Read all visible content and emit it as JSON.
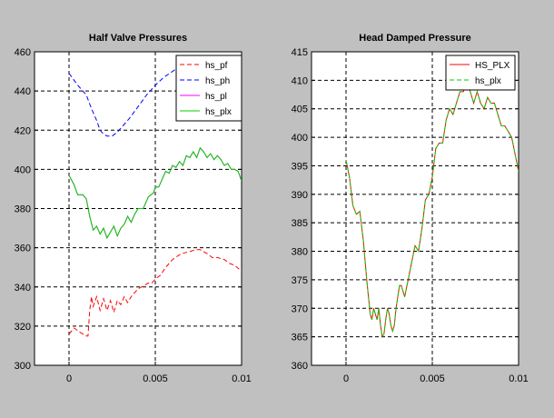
{
  "chart_data": [
    {
      "type": "line",
      "title": "Half Valve Pressures",
      "xlabel": "",
      "ylabel": "",
      "xlim": [
        -0.002,
        0.01
      ],
      "ylim": [
        300,
        460
      ],
      "xticks": [
        0,
        0.005,
        0.01
      ],
      "xtick_labels": [
        "0",
        "0.005",
        "0.01"
      ],
      "yticks": [
        300,
        320,
        340,
        360,
        380,
        400,
        420,
        440,
        460
      ],
      "ytick_labels": [
        "300",
        "320",
        "340",
        "360",
        "380",
        "400",
        "420",
        "440",
        "460"
      ],
      "grid": true,
      "legend_position": "top-right",
      "series": [
        {
          "name": "hs_pf",
          "color": "#ff0000",
          "dash": "dashed",
          "x": [
            0,
            0.0003,
            0.0006,
            0.001,
            0.0011,
            0.0012,
            0.0013,
            0.0014,
            0.0016,
            0.0018,
            0.002,
            0.0022,
            0.0024,
            0.0026,
            0.0028,
            0.003,
            0.0032,
            0.0034,
            0.0036,
            0.0038,
            0.004,
            0.0042,
            0.0044,
            0.0046,
            0.0048,
            0.005,
            0.0053,
            0.0056,
            0.006,
            0.0065,
            0.007,
            0.0073,
            0.0076,
            0.008,
            0.0083,
            0.0086,
            0.009,
            0.0093,
            0.0096,
            0.01
          ],
          "y": [
            316,
            319,
            317,
            315,
            315,
            328,
            335,
            330,
            335,
            328,
            334,
            328,
            333,
            327,
            333,
            331,
            335,
            332,
            335,
            337,
            339,
            340,
            341,
            342,
            342,
            344,
            346,
            350,
            354,
            357,
            358,
            359,
            359,
            357,
            355,
            355,
            354,
            352,
            351,
            348
          ]
        },
        {
          "name": "hs_ph",
          "color": "#0000ff",
          "dash": "dashed",
          "x": [
            0,
            0.0005,
            0.001,
            0.0013,
            0.0016,
            0.0018,
            0.002,
            0.0022,
            0.0025,
            0.0028,
            0.003,
            0.0035,
            0.004,
            0.0045,
            0.005,
            0.0055,
            0.006,
            0.0063
          ],
          "y": [
            449,
            443,
            438,
            431,
            425,
            420,
            418,
            417,
            417,
            419,
            421,
            426,
            432,
            438,
            443,
            447,
            450,
            452
          ]
        },
        {
          "name": "hs_pl",
          "color": "#ff00ff",
          "dash": "solid",
          "x": [
            0,
            0.0003,
            0.0005,
            0.0008,
            0.001,
            0.0012,
            0.0014,
            0.0016,
            0.0018,
            0.002,
            0.0022,
            0.0024,
            0.0026,
            0.0028,
            0.003,
            0.0032,
            0.0034,
            0.0036,
            0.0038,
            0.004,
            0.0043,
            0.0046,
            0.0049,
            0.005,
            0.0052,
            0.0054,
            0.0056,
            0.0058,
            0.006,
            0.0062,
            0.0064,
            0.0066,
            0.0068,
            0.007,
            0.0072,
            0.0074,
            0.0076,
            0.0078,
            0.008,
            0.0082,
            0.0084,
            0.0086,
            0.0088,
            0.009,
            0.0092,
            0.0094,
            0.0096,
            0.0098,
            0.01
          ],
          "y": [
            397,
            392,
            387,
            387,
            385,
            376,
            369,
            371,
            367,
            370,
            365,
            368,
            371,
            366,
            370,
            372,
            376,
            373,
            377,
            380,
            380,
            386,
            388,
            391,
            391,
            395,
            399,
            398,
            402,
            401,
            404,
            402,
            407,
            406,
            409,
            406,
            411,
            409,
            406,
            408,
            405,
            407,
            405,
            402,
            403,
            400,
            400,
            399,
            394
          ]
        },
        {
          "name": "hs_plx",
          "color": "#00d000",
          "dash": "solid",
          "x": [
            0,
            0.0003,
            0.0005,
            0.0008,
            0.001,
            0.0012,
            0.0014,
            0.0016,
            0.0018,
            0.002,
            0.0022,
            0.0024,
            0.0026,
            0.0028,
            0.003,
            0.0032,
            0.0034,
            0.0036,
            0.0038,
            0.004,
            0.0043,
            0.0046,
            0.0049,
            0.005,
            0.0052,
            0.0054,
            0.0056,
            0.0058,
            0.006,
            0.0062,
            0.0064,
            0.0066,
            0.0068,
            0.007,
            0.0072,
            0.0074,
            0.0076,
            0.0078,
            0.008,
            0.0082,
            0.0084,
            0.0086,
            0.0088,
            0.009,
            0.0092,
            0.0094,
            0.0096,
            0.0098,
            0.01
          ],
          "y": [
            397,
            392,
            387,
            387,
            385,
            376,
            369,
            371,
            367,
            370,
            365,
            368,
            371,
            366,
            370,
            372,
            376,
            373,
            377,
            380,
            380,
            386,
            388,
            391,
            391,
            395,
            399,
            398,
            402,
            401,
            404,
            402,
            407,
            406,
            409,
            406,
            411,
            409,
            406,
            408,
            405,
            407,
            405,
            402,
            403,
            400,
            400,
            399,
            394
          ]
        }
      ]
    },
    {
      "type": "line",
      "title": "Head Damped Pressure",
      "xlabel": "",
      "ylabel": "",
      "xlim": [
        -0.002,
        0.01
      ],
      "ylim": [
        360,
        415
      ],
      "xticks": [
        0,
        0.005,
        0.01
      ],
      "xtick_labels": [
        "0",
        "0.005",
        "0.01"
      ],
      "yticks": [
        360,
        365,
        370,
        375,
        380,
        385,
        390,
        395,
        400,
        405,
        410,
        415
      ],
      "ytick_labels": [
        "360",
        "365",
        "370",
        "375",
        "380",
        "385",
        "390",
        "395",
        "400",
        "405",
        "410",
        "415"
      ],
      "grid": true,
      "legend_position": "top-right",
      "series": [
        {
          "name": "HS_PLX",
          "color": "#ff0000",
          "dash": "solid",
          "x": [
            0,
            0.0002,
            0.0004,
            0.0006,
            0.0008,
            0.001,
            0.0012,
            0.0014,
            0.0015,
            0.0016,
            0.0017,
            0.0018,
            0.0019,
            0.002,
            0.0021,
            0.0022,
            0.0023,
            0.0024,
            0.0025,
            0.0026,
            0.0027,
            0.0028,
            0.0029,
            0.003,
            0.0031,
            0.0032,
            0.0034,
            0.0036,
            0.0038,
            0.004,
            0.0042,
            0.0044,
            0.0046,
            0.0048,
            0.005,
            0.0052,
            0.0054,
            0.0056,
            0.0058,
            0.006,
            0.0062,
            0.0064,
            0.0066,
            0.0068,
            0.007,
            0.0072,
            0.0074,
            0.0076,
            0.0078,
            0.008,
            0.0082,
            0.0084,
            0.0086,
            0.0088,
            0.009,
            0.0092,
            0.0094,
            0.0096,
            0.0098,
            0.01
          ],
          "y": [
            396,
            393,
            388,
            386.5,
            387,
            382,
            375,
            369,
            368,
            370,
            369,
            368,
            370,
            367,
            365,
            365.5,
            368,
            370,
            369,
            367,
            366,
            367,
            370,
            372,
            374,
            374,
            372,
            375,
            378,
            381,
            380,
            384,
            389,
            390,
            393,
            398,
            399,
            399,
            403,
            405,
            404,
            406,
            408,
            408,
            410,
            408,
            406,
            408,
            406,
            405,
            407,
            406,
            406,
            404,
            402,
            402,
            401,
            400,
            397,
            394
          ]
        },
        {
          "name": "hs_plx",
          "color": "#00d000",
          "dash": "dashed",
          "x": [
            0,
            0.0002,
            0.0004,
            0.0006,
            0.0008,
            0.001,
            0.0012,
            0.0014,
            0.0015,
            0.0016,
            0.0017,
            0.0018,
            0.0019,
            0.002,
            0.0021,
            0.0022,
            0.0023,
            0.0024,
            0.0025,
            0.0026,
            0.0027,
            0.0028,
            0.0029,
            0.003,
            0.0031,
            0.0032,
            0.0034,
            0.0036,
            0.0038,
            0.004,
            0.0042,
            0.0044,
            0.0046,
            0.0048,
            0.005,
            0.0052,
            0.0054,
            0.0056,
            0.0058,
            0.006,
            0.0062,
            0.0064,
            0.0066,
            0.0068,
            0.007,
            0.0072,
            0.0074,
            0.0076,
            0.0078,
            0.008,
            0.0082,
            0.0084,
            0.0086,
            0.0088,
            0.009,
            0.0092,
            0.0094,
            0.0096,
            0.0098,
            0.01
          ],
          "y": [
            396,
            393,
            388,
            386.5,
            387,
            382,
            375,
            369,
            368,
            370,
            369,
            368,
            370,
            367,
            365,
            365.5,
            368,
            370,
            369,
            367,
            366,
            367,
            370,
            372,
            374,
            374,
            372,
            375,
            378,
            381,
            380,
            384,
            389,
            390,
            393,
            398,
            399,
            399,
            403,
            405,
            404,
            406,
            408,
            408,
            410,
            408,
            406,
            408,
            406,
            405,
            407,
            406,
            406,
            404,
            402,
            402,
            401,
            400,
            397,
            394
          ]
        }
      ]
    }
  ]
}
